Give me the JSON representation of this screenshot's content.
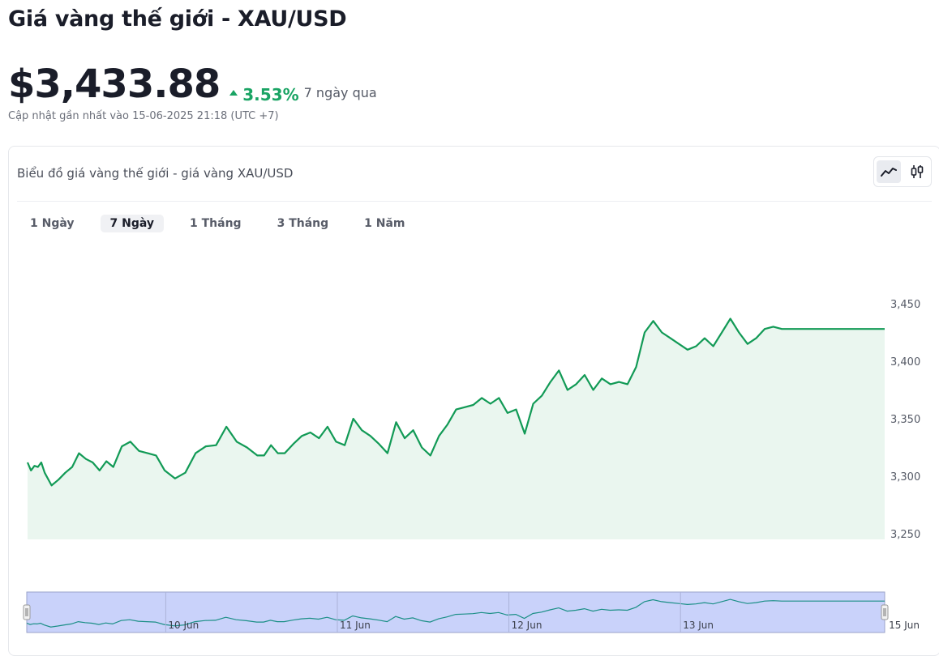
{
  "header": {
    "title": "Giá vàng thế giới - XAU/USD",
    "price": "$3,433.88",
    "change": "3.53%",
    "period": "7 ngày qua",
    "updated": "Cập nhật gần nhất vào 15-06-2025 21:18 (UTC +7)"
  },
  "colors": {
    "accent": "#1aa464",
    "line": "#129a56",
    "area": "#eaf6ef",
    "navigator": "#c9d2fa"
  },
  "card": {
    "title": "Biểu đồ giá vàng thế giới - giá vàng XAU/USD",
    "chart_types": [
      {
        "icon": "line-chart-icon",
        "active": true
      },
      {
        "icon": "candlestick-icon",
        "active": false
      }
    ],
    "tabs": [
      {
        "label": "1 Ngày",
        "active": false
      },
      {
        "label": "7 Ngày",
        "active": true
      },
      {
        "label": "1 Tháng",
        "active": false
      },
      {
        "label": "3 Tháng",
        "active": false
      },
      {
        "label": "1 Năm",
        "active": false
      }
    ]
  },
  "chart_data": {
    "type": "area",
    "ylim": [
      3250,
      3460
    ],
    "yticks": [
      3250,
      3300,
      3350,
      3400,
      3450
    ],
    "ytick_labels": [
      "3,250",
      "3,300",
      "3,350",
      "3,400",
      "3,450"
    ],
    "xlim": [
      0,
      6
    ],
    "navigator_ticks": [
      {
        "x": 0.81,
        "label": "10 Jun"
      },
      {
        "x": 1.81,
        "label": "11 Jun"
      },
      {
        "x": 2.81,
        "label": "12 Jun"
      },
      {
        "x": 3.81,
        "label": "13 Jun"
      },
      {
        "x": 5.01,
        "label": "15 Jun"
      }
    ],
    "x": [
      0,
      0.02,
      0.04,
      0.06,
      0.08,
      0.1,
      0.14,
      0.18,
      0.22,
      0.26,
      0.3,
      0.34,
      0.38,
      0.42,
      0.46,
      0.5,
      0.55,
      0.6,
      0.65,
      0.7,
      0.75,
      0.8,
      0.86,
      0.92,
      0.98,
      1.04,
      1.1,
      1.16,
      1.22,
      1.28,
      1.34,
      1.38,
      1.42,
      1.46,
      1.5,
      1.55,
      1.6,
      1.65,
      1.7,
      1.75,
      1.8,
      1.85,
      1.9,
      1.95,
      2.0,
      2.05,
      2.1,
      2.15,
      2.2,
      2.25,
      2.3,
      2.35,
      2.4,
      2.45,
      2.5,
      2.55,
      2.6,
      2.65,
      2.7,
      2.75,
      2.8,
      2.85,
      2.9,
      2.95,
      3.0,
      3.05,
      3.1,
      3.15,
      3.2,
      3.25,
      3.3,
      3.35,
      3.4,
      3.45,
      3.5,
      3.55,
      3.6,
      3.65,
      3.7,
      3.75,
      3.8,
      3.85,
      3.9,
      3.95,
      4.0,
      4.05,
      4.1,
      4.15,
      4.2,
      4.25,
      4.3,
      4.35,
      4.4,
      4.45,
      4.5,
      4.55,
      4.6,
      4.65,
      4.7,
      4.75,
      4.8,
      4.85,
      4.9,
      4.95,
      5.0
    ],
    "values": [
      3312,
      3305,
      3309,
      3308,
      3312,
      3303,
      3292,
      3297,
      3303,
      3308,
      3320,
      3315,
      3312,
      3305,
      3313,
      3308,
      3326,
      3330,
      3322,
      3320,
      3318,
      3305,
      3298,
      3303,
      3320,
      3326,
      3327,
      3343,
      3330,
      3325,
      3318,
      3318,
      3327,
      3320,
      3320,
      3328,
      3335,
      3338,
      3333,
      3343,
      3330,
      3327,
      3350,
      3340,
      3335,
      3328,
      3320,
      3347,
      3333,
      3340,
      3325,
      3318,
      3335,
      3345,
      3358,
      3360,
      3362,
      3368,
      3363,
      3368,
      3355,
      3358,
      3337,
      3363,
      3370,
      3382,
      3392,
      3375,
      3380,
      3388,
      3375,
      3385,
      3380,
      3382,
      3380,
      3395,
      3425,
      3435,
      3425,
      3420,
      3415,
      3410,
      3413,
      3420,
      3413,
      3425,
      3437,
      3425,
      3415,
      3420,
      3428,
      3430,
      3428,
      3428,
      3428,
      3428,
      3428,
      3428,
      3428,
      3428,
      3428,
      3428,
      3428,
      3428,
      3428
    ]
  }
}
